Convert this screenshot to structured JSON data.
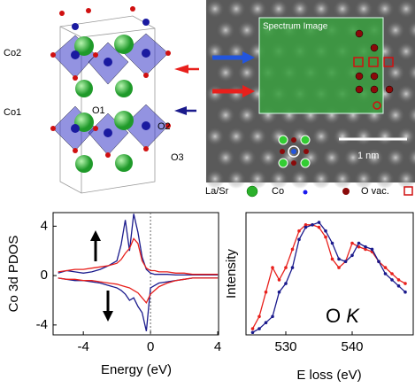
{
  "structure": {
    "labels": [
      "Co2",
      "Co1",
      "O1",
      "O2",
      "O3"
    ]
  },
  "stem_image": {
    "title": "Spectrum Image",
    "scale_bar": "1 nm",
    "legend": [
      "La/Sr",
      "Co",
      "O vac."
    ]
  },
  "chart_data": [
    {
      "type": "line",
      "xlabel": "Energy (eV)",
      "ylabel": "Co 3d PDOS",
      "x": [
        -5.5,
        -5,
        -4.5,
        -4,
        -3.5,
        -3,
        -2.5,
        -2,
        -1.75,
        -1.5,
        -1.25,
        -1,
        -0.75,
        -0.5,
        -0.25,
        0,
        0.25,
        0.5,
        1,
        1.5,
        2,
        2.5,
        3,
        3.5,
        4
      ],
      "xlim": [
        -5.8,
        4.05
      ],
      "ylim": [
        -4.8,
        5.1
      ],
      "xticks": [
        -4,
        0,
        4
      ],
      "yticks": [
        4,
        0,
        -4
      ],
      "vline": 0,
      "series": [
        {
          "color": "#1a1a8c",
          "values": [
            0.2,
            0.4,
            0.3,
            0.2,
            0.3,
            0.5,
            0.8,
            1.2,
            2.5,
            4.5,
            2.0,
            5.0,
            3.5,
            1.5,
            0.5,
            0.2,
            0.1,
            0.1,
            0.1,
            0.05,
            0.05,
            0.05,
            0.05,
            0.05,
            0.05
          ]
        },
        {
          "color": "#e8201c",
          "values": [
            0.3,
            0.4,
            0.5,
            0.5,
            0.6,
            0.7,
            0.8,
            1.0,
            1.3,
            1.8,
            2.2,
            3.0,
            2.6,
            1.2,
            0.6,
            0.4,
            0.4,
            0.3,
            0.3,
            0.2,
            0.2,
            0.1,
            0.1,
            0.1,
            0.1
          ]
        },
        {
          "color": "#1a1a8c",
          "values": [
            -0.2,
            -0.3,
            -0.4,
            -0.4,
            -0.5,
            -0.6,
            -0.8,
            -1.0,
            -1.2,
            -1.5,
            -2.0,
            -1.8,
            -2.5,
            -3.0,
            -4.5,
            -1.0,
            -0.8,
            -0.6,
            -0.5,
            -0.4,
            -0.3,
            -0.2,
            -0.2,
            -0.2,
            -0.2
          ]
        },
        {
          "color": "#e8201c",
          "values": [
            -0.2,
            -0.3,
            -0.3,
            -0.4,
            -0.4,
            -0.5,
            -0.6,
            -0.7,
            -0.8,
            -0.9,
            -1.0,
            -1.2,
            -1.4,
            -1.8,
            -2.2,
            -1.5,
            -1.2,
            -0.9,
            -0.6,
            -0.4,
            -0.3,
            -0.2,
            -0.2,
            -0.2,
            -0.2
          ]
        }
      ]
    },
    {
      "type": "line",
      "xlabel": "E loss (eV)",
      "ylabel": "Intensity",
      "annotation": [
        "O",
        "K"
      ],
      "x": [
        525,
        526,
        527,
        528,
        529,
        530,
        531,
        532,
        533,
        534,
        535,
        536,
        537,
        538,
        539,
        540,
        541,
        542,
        543,
        544,
        545,
        546,
        547,
        548
      ],
      "xlim": [
        524,
        549.2
      ],
      "ylim": [
        0,
        1
      ],
      "xticks": [
        530,
        540
      ],
      "markers": true,
      "series": [
        {
          "color": "#e8201c",
          "values": [
            0.05,
            0.15,
            0.35,
            0.55,
            0.45,
            0.55,
            0.7,
            0.85,
            0.9,
            0.9,
            0.88,
            0.8,
            0.62,
            0.55,
            0.6,
            0.75,
            0.72,
            0.7,
            0.68,
            0.6,
            0.55,
            0.5,
            0.45,
            0.42
          ]
        },
        {
          "color": "#1a1a8c",
          "values": [
            0.02,
            0.05,
            0.1,
            0.15,
            0.35,
            0.42,
            0.55,
            0.78,
            0.88,
            0.9,
            0.92,
            0.85,
            0.75,
            0.62,
            0.6,
            0.65,
            0.75,
            0.72,
            0.7,
            0.6,
            0.5,
            0.45,
            0.4,
            0.35
          ]
        }
      ]
    }
  ]
}
